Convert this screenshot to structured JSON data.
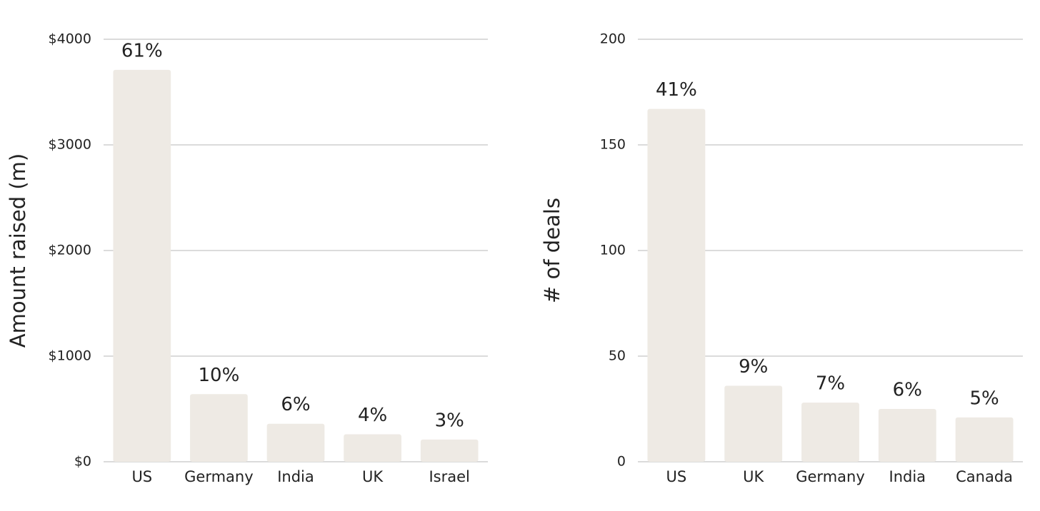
{
  "chart_data": [
    {
      "type": "bar",
      "y_label": "Amount raised (m)",
      "categories": [
        "US",
        "Germany",
        "India",
        "UK",
        "Israel"
      ],
      "values": [
        3710,
        640,
        360,
        260,
        210
      ],
      "bar_labels": [
        "61%",
        "10%",
        "6%",
        "4%",
        "3%"
      ],
      "color": "#eeeae4",
      "ylim": [
        0,
        4000
      ],
      "yticks": [
        {
          "value": 0,
          "label": "$0"
        },
        {
          "value": 1000,
          "label": "$1000"
        },
        {
          "value": 2000,
          "label": "$2000"
        },
        {
          "value": 3000,
          "label": "$3000"
        },
        {
          "value": 4000,
          "label": "$4000"
        }
      ],
      "grid": true
    },
    {
      "type": "bar",
      "y_label": "# of deals",
      "categories": [
        "US",
        "UK",
        "Germany",
        "India",
        "Canada"
      ],
      "values": [
        167,
        36,
        28,
        25,
        21
      ],
      "bar_labels": [
        "41%",
        "9%",
        "7%",
        "6%",
        "5%"
      ],
      "color": "#eeeae4",
      "ylim": [
        0,
        200
      ],
      "yticks": [
        0,
        50,
        100,
        150,
        200
      ],
      "grid": true
    }
  ]
}
